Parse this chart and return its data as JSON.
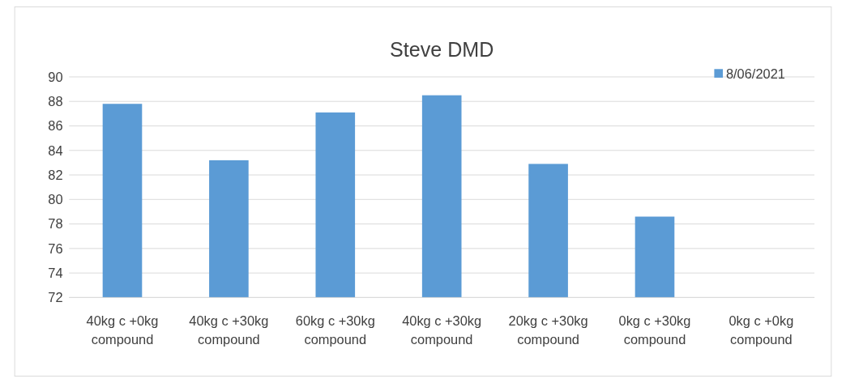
{
  "chart_data": {
    "type": "bar",
    "title": "Steve DMD",
    "categories": [
      "40kg c +0kg compound",
      "40kg c +30kg compound",
      "60kg c +30kg compound",
      "40kg c +30kg compound",
      "20kg c +30kg compound",
      "0kg c +30kg compound",
      "0kg c +0kg compound"
    ],
    "series": [
      {
        "name": "8/06/2021",
        "color": "#5b9bd5",
        "values": [
          87.8,
          83.2,
          87.1,
          88.5,
          82.9,
          78.6,
          null
        ]
      }
    ],
    "ylim": [
      72,
      90
    ],
    "yticks": [
      72,
      74,
      76,
      78,
      80,
      82,
      84,
      86,
      88,
      90
    ],
    "grid": "y",
    "legend": "top right"
  }
}
